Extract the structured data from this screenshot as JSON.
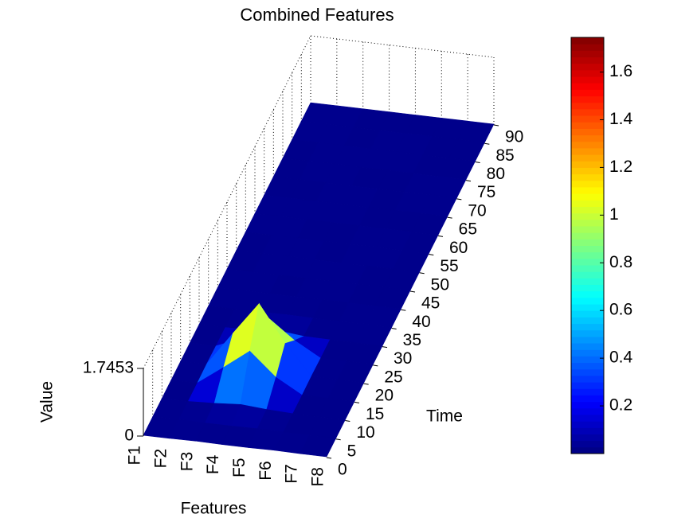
{
  "chart_data": {
    "type": "surface",
    "title": "Combined Features",
    "xlabel": "Features",
    "ylabel": "Time",
    "zlabel": "Value",
    "categories": [
      "F1",
      "F2",
      "F3",
      "F4",
      "F5",
      "F6",
      "F7",
      "F8"
    ],
    "y": [
      0,
      5,
      10,
      15,
      20,
      25,
      30,
      35,
      40,
      45,
      50,
      55,
      60,
      65,
      70,
      75,
      80,
      85,
      90
    ],
    "ylim": [
      0,
      90
    ],
    "yticks": [
      0,
      5,
      10,
      15,
      20,
      25,
      30,
      35,
      40,
      45,
      50,
      55,
      60,
      65,
      70,
      75,
      80,
      85,
      90
    ],
    "zlim": [
      0,
      1.7453
    ],
    "zticks": [
      0,
      1.7453
    ],
    "z": [
      [
        0.02,
        0.02,
        0.03,
        0.02,
        0.02,
        0.03,
        0.02,
        0.02
      ],
      [
        0.02,
        0.03,
        0.02,
        0.02,
        0.03,
        0.02,
        0.02,
        0.02
      ],
      [
        0.02,
        0.02,
        0.05,
        0.1,
        0.05,
        0.02,
        0.02,
        0.02
      ],
      [
        0.02,
        0.02,
        0.5,
        1.0,
        0.4,
        0.02,
        0.02,
        0.02
      ],
      [
        0.02,
        0.03,
        0.9,
        1.7453,
        0.8,
        0.03,
        0.02,
        0.02
      ],
      [
        0.02,
        0.02,
        0.3,
        0.9,
        0.4,
        0.02,
        0.02,
        0.02
      ],
      [
        0.02,
        0.02,
        0.03,
        0.1,
        0.03,
        0.02,
        0.02,
        0.02
      ],
      [
        0.02,
        0.02,
        0.02,
        0.03,
        0.02,
        0.02,
        0.03,
        0.02
      ],
      [
        0.02,
        0.03,
        0.02,
        0.02,
        0.02,
        0.02,
        0.02,
        0.02
      ],
      [
        0.02,
        0.02,
        0.02,
        0.02,
        0.03,
        0.02,
        0.02,
        0.02
      ],
      [
        0.02,
        0.02,
        0.03,
        0.02,
        0.02,
        0.02,
        0.02,
        0.02
      ],
      [
        0.02,
        0.02,
        0.02,
        0.02,
        0.02,
        0.03,
        0.02,
        0.02
      ],
      [
        0.02,
        0.03,
        0.02,
        0.02,
        0.02,
        0.02,
        0.02,
        0.02
      ],
      [
        0.02,
        0.02,
        0.02,
        0.03,
        0.02,
        0.02,
        0.02,
        0.02
      ],
      [
        0.02,
        0.02,
        0.02,
        0.02,
        0.02,
        0.02,
        0.03,
        0.02
      ],
      [
        0.02,
        0.02,
        0.03,
        0.02,
        0.02,
        0.02,
        0.02,
        0.02
      ],
      [
        0.02,
        0.02,
        0.02,
        0.02,
        0.03,
        0.02,
        0.02,
        0.02
      ],
      [
        0.02,
        0.03,
        0.02,
        0.02,
        0.02,
        0.02,
        0.02,
        0.02
      ],
      [
        0.02,
        0.02,
        0.02,
        0.02,
        0.02,
        0.02,
        0.02,
        0.02
      ]
    ],
    "colormap": "jet",
    "clim": [
      0,
      1.7453
    ],
    "cticks": [
      0.2,
      0.4,
      0.6,
      0.8,
      1,
      1.2,
      1.4,
      1.6
    ]
  }
}
